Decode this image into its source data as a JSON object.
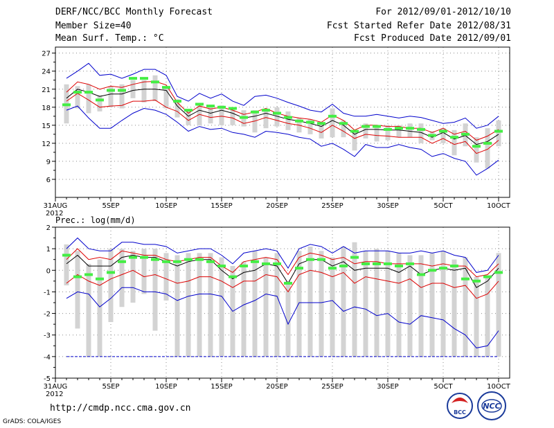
{
  "header": {
    "title": "DERF/NCC/BCC Monthly Forecast",
    "member_size": "Member Size=40",
    "variable": "Mean Surf. Temp.: °C",
    "period": "For 2012/09/01-2012/10/10",
    "started": "Fcst Started Refer Date 2012/08/31",
    "produced": "Fcst Produced Date 2012/09/01"
  },
  "footer": {
    "url": "http://cmdp.ncc.cma.gov.cn",
    "grads": "GrADS: COLA/IGES",
    "logo_bcc": "BCC",
    "logo_ncc": "NCC"
  },
  "chart_data": [
    {
      "type": "ensemble-box-line",
      "ylabel": "Mean Surf. Temp.: °C",
      "x_tick_labels": [
        "31AUG",
        "5SEP",
        "10SEP",
        "15SEP",
        "20SEP",
        "25SEP",
        "30SEP",
        "5OCT",
        "10OCT"
      ],
      "x_tick_days": [
        0,
        5,
        10,
        15,
        20,
        25,
        30,
        35,
        40
      ],
      "x_year": "2012",
      "ylim": [
        3,
        28
      ],
      "y_ticks": [
        6,
        9,
        12,
        15,
        18,
        21,
        24,
        27
      ],
      "colors": {
        "max": "#0000cc",
        "min": "#0000cc",
        "upper": "#dd0000",
        "lower": "#dd0000",
        "mean": "#000000",
        "marker": "#44ee44",
        "box": "#d3d3d3"
      },
      "x_days": [
        1,
        2,
        3,
        4,
        5,
        6,
        7,
        8,
        9,
        10,
        11,
        12,
        13,
        14,
        15,
        16,
        17,
        18,
        19,
        20,
        21,
        22,
        23,
        24,
        25,
        26,
        27,
        28,
        29,
        30,
        31,
        32,
        33,
        34,
        35,
        36,
        37,
        38,
        39,
        40
      ],
      "max_line": [
        22.8,
        24.0,
        25.3,
        23.3,
        23.5,
        22.8,
        23.5,
        24.3,
        24.3,
        23.3,
        19.8,
        19.0,
        20.3,
        19.5,
        20.2,
        19.0,
        18.3,
        19.8,
        20.0,
        19.5,
        18.8,
        18.2,
        17.5,
        17.2,
        18.5,
        17.0,
        16.5,
        16.5,
        16.8,
        16.5,
        16.2,
        16.5,
        16.3,
        15.8,
        15.3,
        15.5,
        16.2,
        14.5,
        15.0,
        16.5
      ],
      "upper_line": [
        20.5,
        22.2,
        21.8,
        21.0,
        21.5,
        21.3,
        21.8,
        22.2,
        22.3,
        21.7,
        18.8,
        17.0,
        18.2,
        17.7,
        18.0,
        17.5,
        16.8,
        17.2,
        17.8,
        17.0,
        16.5,
        16.2,
        16.0,
        15.5,
        16.7,
        15.8,
        14.2,
        15.0,
        15.0,
        14.8,
        14.8,
        14.5,
        14.5,
        13.8,
        14.5,
        13.5,
        14.0,
        12.5,
        13.2,
        14.3
      ],
      "mean_line": [
        19.5,
        21.0,
        20.5,
        19.8,
        20.2,
        20.2,
        20.8,
        21.0,
        21.0,
        20.8,
        18.2,
        16.5,
        17.5,
        17.0,
        17.5,
        17.0,
        16.2,
        16.5,
        17.0,
        16.5,
        16.0,
        15.7,
        15.3,
        14.8,
        15.8,
        15.0,
        13.5,
        14.3,
        14.3,
        14.2,
        14.2,
        14.0,
        13.8,
        13.0,
        13.8,
        12.7,
        13.3,
        11.8,
        12.3,
        13.5
      ],
      "lower_line": [
        19.0,
        20.3,
        19.2,
        18.0,
        18.2,
        18.3,
        19.0,
        19.0,
        19.2,
        18.0,
        17.3,
        15.8,
        16.8,
        16.3,
        16.5,
        16.2,
        15.3,
        15.7,
        16.3,
        15.8,
        15.3,
        15.0,
        14.5,
        13.8,
        15.0,
        14.0,
        12.8,
        13.5,
        13.3,
        13.2,
        13.0,
        13.0,
        13.0,
        12.0,
        12.8,
        11.8,
        12.3,
        10.3,
        11.0,
        12.5
      ],
      "min_line": [
        17.5,
        18.2,
        16.2,
        14.5,
        14.5,
        15.8,
        17.0,
        17.8,
        17.5,
        16.8,
        15.5,
        14.0,
        14.8,
        14.3,
        14.5,
        13.8,
        13.5,
        13.0,
        14.0,
        13.8,
        13.5,
        13.0,
        12.7,
        11.5,
        12.0,
        11.0,
        9.8,
        11.8,
        11.3,
        11.3,
        11.8,
        11.3,
        11.0,
        9.8,
        10.3,
        9.5,
        9.0,
        6.7,
        7.8,
        9.2
      ],
      "box_top": [
        21.8,
        21.5,
        21.8,
        20.0,
        21.5,
        21.8,
        22.5,
        22.5,
        23.3,
        21.5,
        19.3,
        17.5,
        18.5,
        18.0,
        18.3,
        17.8,
        17.5,
        17.5,
        17.8,
        18.0,
        17.3,
        16.2,
        16.0,
        15.5,
        17.8,
        15.8,
        14.0,
        15.3,
        15.0,
        15.0,
        15.0,
        15.3,
        15.3,
        14.0,
        14.5,
        14.2,
        15.3,
        13.0,
        14.5,
        15.8
      ],
      "box_bottom": [
        15.3,
        17.8,
        17.0,
        17.3,
        18.0,
        17.8,
        19.5,
        18.8,
        19.0,
        17.8,
        16.3,
        15.0,
        15.0,
        15.3,
        15.0,
        15.0,
        14.8,
        13.8,
        14.5,
        14.8,
        14.2,
        13.8,
        13.5,
        12.8,
        13.0,
        13.0,
        10.8,
        12.8,
        12.3,
        12.5,
        13.0,
        13.0,
        12.0,
        12.5,
        12.0,
        10.0,
        11.5,
        8.8,
        7.8,
        11.5
      ],
      "marker": [
        18.4,
        20.5,
        20.5,
        19.2,
        20.8,
        20.8,
        22.8,
        22.8,
        22.2,
        21.3,
        19.0,
        17.5,
        18.5,
        18.2,
        18.0,
        17.8,
        16.3,
        17.2,
        17.5,
        17.0,
        16.3,
        15.7,
        15.5,
        15.3,
        16.5,
        15.3,
        14.0,
        14.8,
        14.8,
        14.3,
        14.5,
        14.5,
        14.3,
        13.3,
        14.0,
        13.0,
        13.5,
        11.5,
        12.0,
        14.0
      ]
    },
    {
      "type": "ensemble-box-line",
      "ylabel": "Prec.: log(mm/d)",
      "x_tick_labels": [
        "31AUG",
        "5SEP",
        "10SEP",
        "15SEP",
        "20SEP",
        "25SEP",
        "30SEP",
        "5OCT",
        "10OCT"
      ],
      "x_tick_days": [
        0,
        5,
        10,
        15,
        20,
        25,
        30,
        35,
        40
      ],
      "x_year": "2012",
      "ylim": [
        -5,
        2
      ],
      "y_ticks": [
        -5,
        -4,
        -3,
        -2,
        -1,
        0,
        1,
        2
      ],
      "floor_value": -4,
      "colors": {
        "max": "#0000cc",
        "min": "#0000cc",
        "upper": "#dd0000",
        "lower": "#dd0000",
        "mean": "#000000",
        "marker": "#44ee44",
        "box": "#d3d3d3",
        "floor": "#0000cc"
      },
      "x_days": [
        1,
        2,
        3,
        4,
        5,
        6,
        7,
        8,
        9,
        10,
        11,
        12,
        13,
        14,
        15,
        16,
        17,
        18,
        19,
        20,
        21,
        22,
        23,
        24,
        25,
        26,
        27,
        28,
        29,
        30,
        31,
        32,
        33,
        34,
        35,
        36,
        37,
        38,
        39,
        40
      ],
      "max_line": [
        1.0,
        1.5,
        1.0,
        0.9,
        0.9,
        1.3,
        1.3,
        1.2,
        1.2,
        1.1,
        0.8,
        0.9,
        1.0,
        1.0,
        0.7,
        0.3,
        0.8,
        0.9,
        1.0,
        0.9,
        0.1,
        1.0,
        1.2,
        1.1,
        0.8,
        1.1,
        0.8,
        0.9,
        0.9,
        0.9,
        0.8,
        0.8,
        0.9,
        0.8,
        0.9,
        0.7,
        0.6,
        -0.1,
        0.0,
        0.7
      ],
      "upper_line": [
        0.5,
        1.0,
        0.5,
        0.6,
        0.5,
        0.9,
        0.8,
        0.7,
        0.7,
        0.5,
        0.4,
        0.5,
        0.6,
        0.6,
        0.2,
        -0.1,
        0.4,
        0.5,
        0.6,
        0.5,
        -0.2,
        0.6,
        0.8,
        0.7,
        0.5,
        0.6,
        0.3,
        0.4,
        0.4,
        0.3,
        0.3,
        0.3,
        0.3,
        0.2,
        0.3,
        0.2,
        0.2,
        -0.3,
        -0.2,
        0.3
      ],
      "mean_line": [
        0.3,
        0.7,
        0.2,
        0.2,
        0.2,
        0.6,
        0.7,
        0.6,
        0.6,
        0.4,
        0.2,
        0.4,
        0.5,
        0.5,
        0.0,
        -0.4,
        -0.1,
        0.0,
        0.3,
        0.2,
        -0.6,
        0.3,
        0.5,
        0.5,
        0.2,
        0.4,
        0.0,
        0.1,
        0.1,
        0.1,
        -0.1,
        0.2,
        -0.2,
        0.0,
        0.1,
        0.0,
        0.1,
        -0.8,
        -0.5,
        0.1
      ],
      "lower_line": [
        -0.6,
        -0.2,
        -0.5,
        -0.7,
        -0.4,
        -0.2,
        0.0,
        -0.3,
        -0.2,
        -0.4,
        -0.6,
        -0.5,
        -0.3,
        -0.3,
        -0.5,
        -0.8,
        -0.5,
        -0.5,
        -0.2,
        -0.3,
        -1.0,
        -0.2,
        0.0,
        -0.1,
        -0.3,
        -0.1,
        -0.6,
        -0.3,
        -0.4,
        -0.5,
        -0.6,
        -0.4,
        -0.8,
        -0.6,
        -0.6,
        -0.8,
        -0.7,
        -1.3,
        -1.1,
        -0.5
      ],
      "min_line": [
        -1.3,
        -1.0,
        -1.1,
        -1.7,
        -1.3,
        -0.8,
        -0.8,
        -1.0,
        -1.0,
        -1.1,
        -1.4,
        -1.2,
        -1.1,
        -1.1,
        -1.2,
        -1.9,
        -1.6,
        -1.4,
        -1.1,
        -1.2,
        -2.5,
        -1.5,
        -1.5,
        -1.5,
        -1.4,
        -1.9,
        -1.7,
        -1.8,
        -2.1,
        -2.0,
        -2.4,
        -2.5,
        -2.1,
        -2.2,
        -2.3,
        -2.7,
        -3.0,
        -3.6,
        -3.5,
        -2.8
      ],
      "box_top": [
        1.2,
        0.9,
        0.3,
        0.5,
        1.0,
        1.0,
        0.9,
        1.0,
        1.0,
        0.8,
        0.7,
        0.8,
        0.8,
        0.8,
        0.6,
        0.2,
        0.4,
        0.9,
        0.6,
        0.8,
        -0.5,
        0.9,
        1.1,
        0.9,
        0.6,
        1.1,
        1.3,
        0.9,
        1.0,
        0.9,
        0.8,
        0.7,
        0.7,
        0.8,
        0.9,
        0.5,
        0.6,
        -0.3,
        -0.3,
        0.8
      ],
      "box_bottom": [
        -0.7,
        -2.7,
        -4.0,
        -4.0,
        -2.4,
        -1.7,
        -1.5,
        -1.1,
        -2.8,
        -1.4,
        -4.0,
        -4.0,
        -4.0,
        -4.0,
        -4.0,
        -4.0,
        -4.0,
        -4.0,
        -4.0,
        -4.0,
        -4.0,
        -4.0,
        -4.0,
        -4.0,
        -4.0,
        -4.0,
        -4.0,
        -4.0,
        -4.0,
        -4.0,
        -4.0,
        -4.0,
        -4.0,
        -4.0,
        -4.0,
        -4.0,
        -4.0,
        -4.0,
        -4.0,
        -4.0
      ],
      "marker": [
        0.7,
        -0.3,
        -0.2,
        -0.4,
        -0.1,
        0.4,
        0.6,
        0.6,
        0.5,
        0.4,
        0.4,
        0.5,
        0.5,
        0.4,
        0.2,
        -0.3,
        0.2,
        0.4,
        0.3,
        0.3,
        -0.6,
        0.1,
        0.5,
        0.5,
        0.1,
        0.2,
        0.6,
        0.3,
        0.3,
        0.3,
        0.2,
        0.3,
        -0.2,
        0.0,
        0.1,
        0.2,
        -0.4,
        -0.5,
        -0.3,
        -0.1
      ]
    }
  ]
}
